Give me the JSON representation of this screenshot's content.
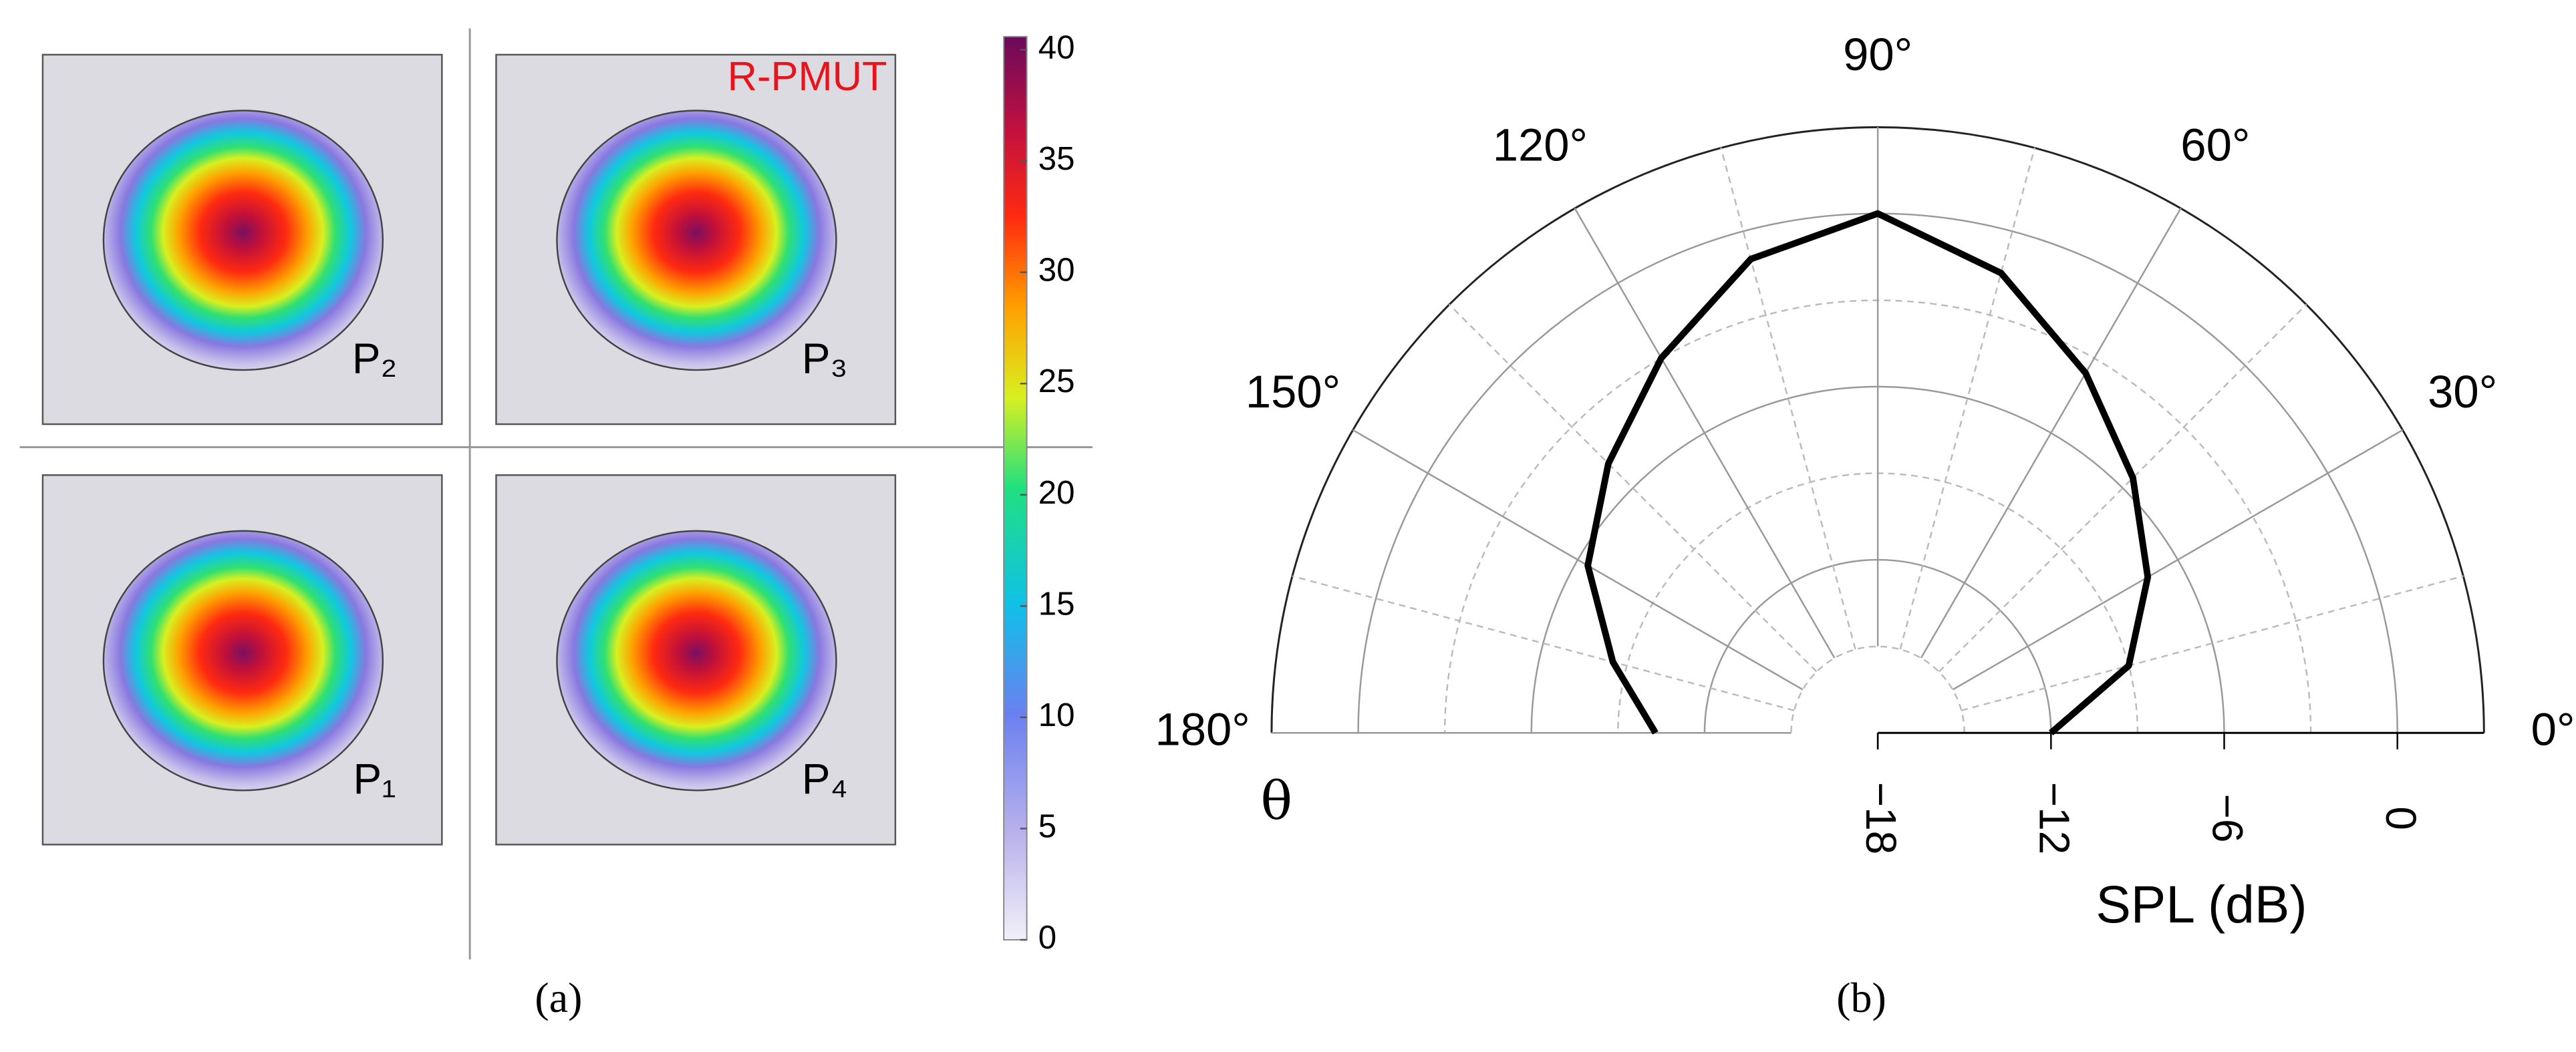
{
  "chart_data": [
    {
      "type": "heatmap",
      "title": "R-PMUT",
      "panels": [
        "P₂",
        "P₃",
        "P₁",
        "P₄"
      ],
      "caption": "(a)",
      "colorbar": {
        "lim": [
          0,
          40
        ],
        "ticks": [
          0,
          5,
          10,
          15,
          20,
          25,
          30,
          35,
          40
        ]
      }
    },
    {
      "type": "polar",
      "theta": [
        0,
        15,
        30,
        45,
        60,
        75,
        90,
        105,
        120,
        135,
        150,
        165,
        180
      ],
      "values": [
        -12,
        -9,
        -7.2,
        -5.5,
        -3.6,
        -1.5,
        0,
        -1,
        -3,
        -4.8,
        -6.4,
        -8.5,
        -10.3
      ],
      "color": "#000000",
      "rlim": [
        -18,
        3
      ],
      "rticks": [
        {
          "value": -18,
          "label": "−18"
        },
        {
          "value": -12,
          "label": "−12"
        },
        {
          "value": -6,
          "label": "−6"
        },
        0
      ],
      "rminor": [
        -15,
        -9,
        -3
      ],
      "thetaticks": [
        {
          "value": 0,
          "label": "0°"
        },
        {
          "value": 30,
          "label": "30°"
        },
        {
          "value": 60,
          "label": "60°"
        },
        {
          "value": 90,
          "label": "90°"
        },
        {
          "value": 120,
          "label": "120°"
        },
        {
          "value": 150,
          "label": "150°"
        },
        {
          "value": 180,
          "label": "180°"
        }
      ],
      "thetaminor": [
        15,
        45,
        75,
        105,
        135,
        165
      ],
      "theta_label": "θ",
      "r_label": "SPL (dB)",
      "caption": "(b)"
    }
  ]
}
